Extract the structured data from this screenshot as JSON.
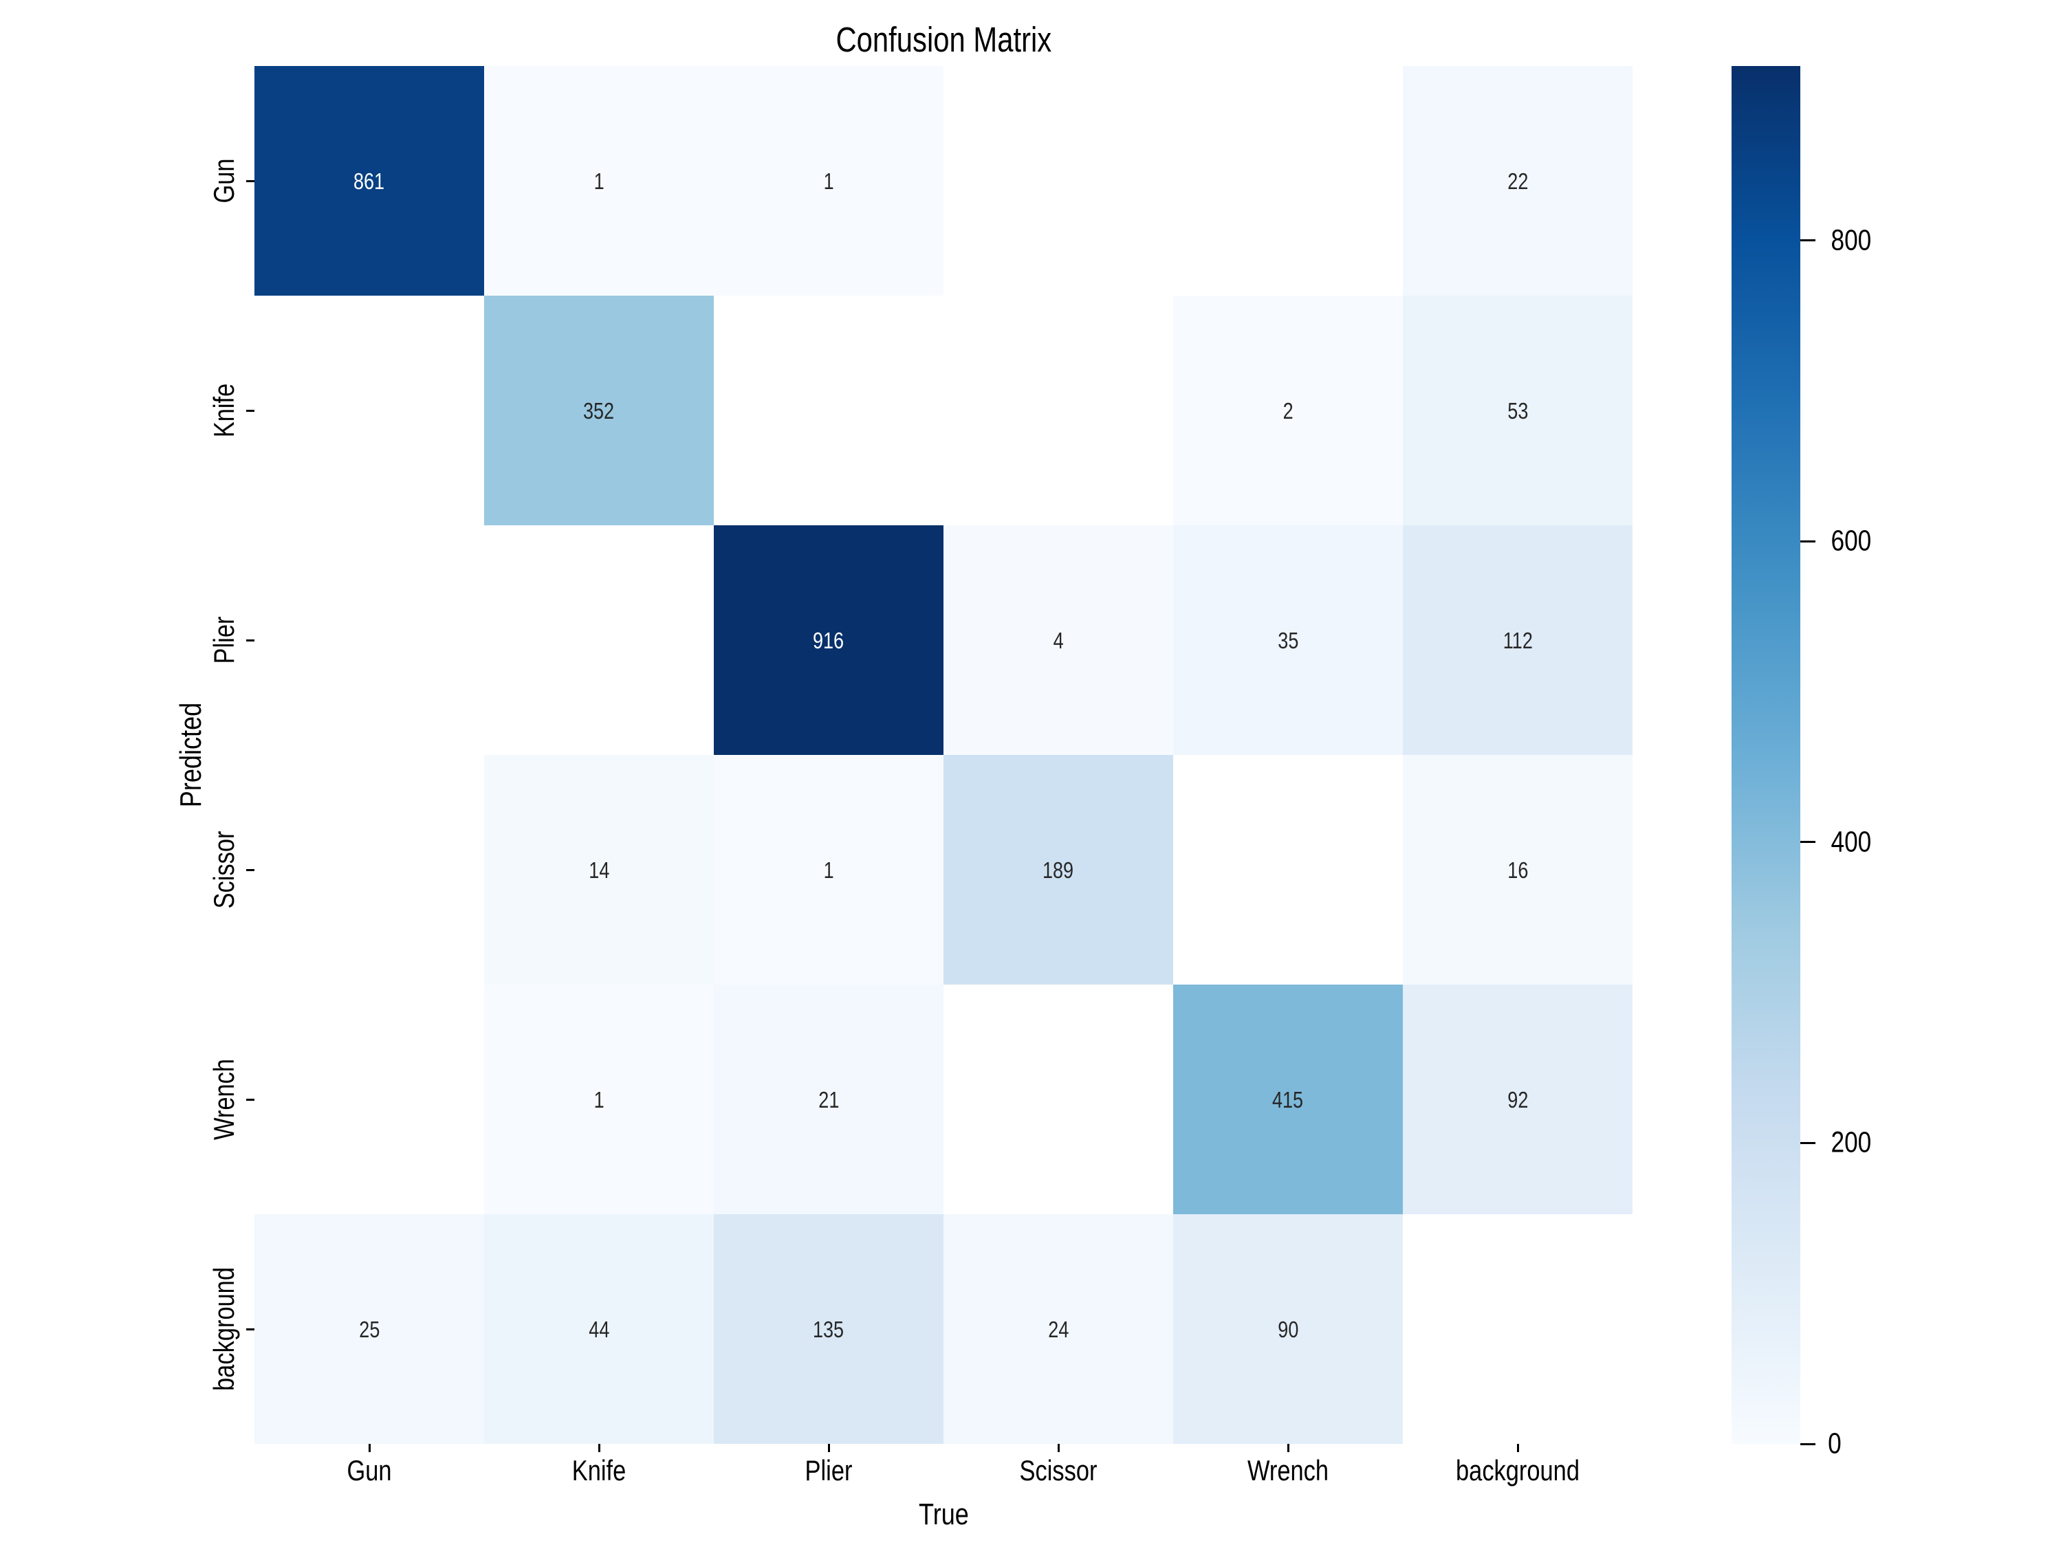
{
  "chart_data": {
    "type": "heatmap",
    "title": "Confusion Matrix",
    "xlabel": "True",
    "ylabel": "Predicted",
    "x_categories": [
      "Gun",
      "Knife",
      "Plier",
      "Scissor",
      "Wrench",
      "background"
    ],
    "y_categories": [
      "Gun",
      "Knife",
      "Plier",
      "Scissor",
      "Wrench",
      "background"
    ],
    "matrix": [
      [
        861,
        1,
        1,
        null,
        null,
        22
      ],
      [
        null,
        352,
        null,
        null,
        2,
        53
      ],
      [
        null,
        null,
        916,
        4,
        35,
        112
      ],
      [
        null,
        14,
        1,
        189,
        null,
        16
      ],
      [
        null,
        1,
        21,
        null,
        415,
        92
      ],
      [
        25,
        44,
        135,
        24,
        90,
        null
      ]
    ],
    "empty_cells_rendered_as": "blank white",
    "vmin": 0,
    "vmax": 916,
    "grid": "off",
    "legend_position": "right colorbar",
    "colorbar_ticks": [
      0,
      200,
      400,
      600,
      800
    ],
    "colormap": {
      "name": "Blues",
      "anchors": [
        "#f7fbff",
        "#deebf7",
        "#c6dbef",
        "#9ecae1",
        "#6baed6",
        "#4292c6",
        "#2171b5",
        "#08519c",
        "#08306b"
      ]
    },
    "colors": {
      "figure_background": "#ffffff",
      "axis_text": "#000000",
      "annotation_dark_text": "#262626",
      "annotation_light_text": "#ffffff",
      "max_cell": "#08306b",
      "min_cell": "#f7fbff"
    }
  }
}
